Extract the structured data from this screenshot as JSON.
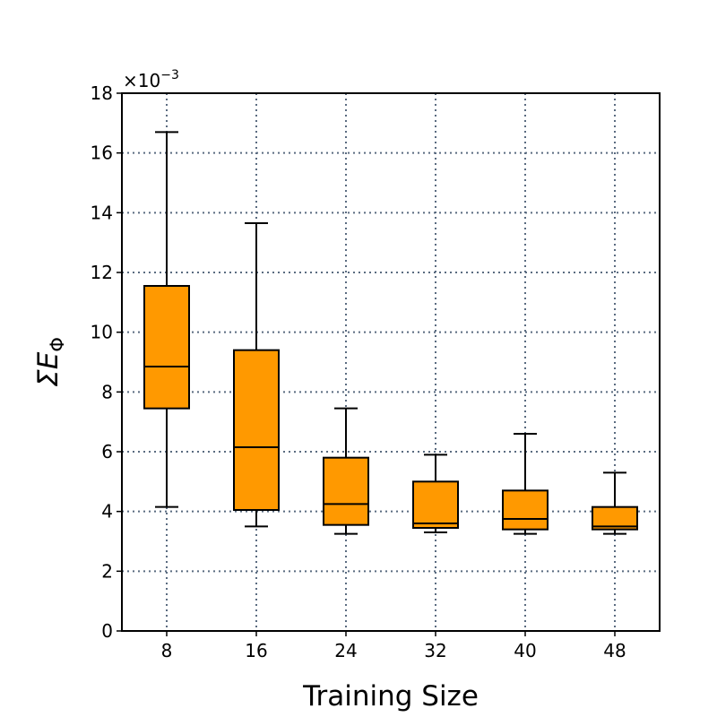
{
  "chart_data": {
    "type": "box",
    "xlabel": "Training Size",
    "ylabel_symbol": "ΣE",
    "ylabel_subscript": "Φ",
    "y_scale_prefix": "×10",
    "y_scale_exponent": "−3",
    "ylim": [
      0,
      18
    ],
    "yticks": [
      "0",
      "2",
      "4",
      "6",
      "8",
      "10",
      "12",
      "14",
      "16",
      "18"
    ],
    "grid": true,
    "box_color": "#ff9900",
    "grid_color": "#5a6b80",
    "categories": [
      "8",
      "16",
      "24",
      "32",
      "40",
      "48"
    ],
    "boxes": [
      {
        "whisker_low": 4.15,
        "q1": 7.45,
        "median": 8.85,
        "q3": 11.55,
        "whisker_high": 16.7
      },
      {
        "whisker_low": 3.5,
        "q1": 4.05,
        "median": 6.15,
        "q3": 9.4,
        "whisker_high": 13.65
      },
      {
        "whisker_low": 3.25,
        "q1": 3.55,
        "median": 4.25,
        "q3": 5.8,
        "whisker_high": 7.45
      },
      {
        "whisker_low": 3.3,
        "q1": 3.45,
        "median": 3.6,
        "q3": 5.0,
        "whisker_high": 5.9
      },
      {
        "whisker_low": 3.25,
        "q1": 3.4,
        "median": 3.75,
        "q3": 4.7,
        "whisker_high": 6.6
      },
      {
        "whisker_low": 3.25,
        "q1": 3.4,
        "median": 3.5,
        "q3": 4.15,
        "whisker_high": 5.3
      }
    ]
  }
}
